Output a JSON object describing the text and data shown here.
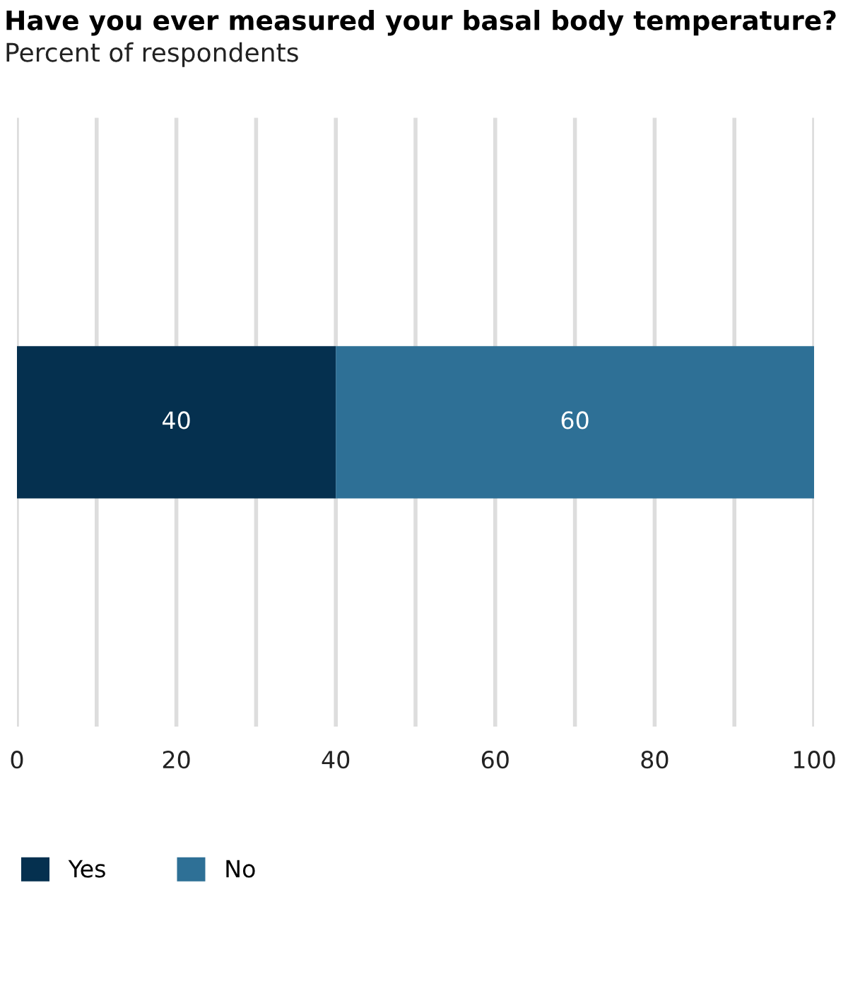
{
  "chart_data": {
    "type": "bar",
    "orientation": "horizontal",
    "stacked": true,
    "title": "Have you ever measured your basal body temperature?",
    "subtitle": "Percent of respondents",
    "categories": [
      null
    ],
    "series": [
      {
        "name": "Yes",
        "color": "#05304f",
        "values": [
          40
        ]
      },
      {
        "name": "No",
        "color": "#2e7096",
        "values": [
          60
        ]
      }
    ],
    "xlim": [
      0,
      100
    ],
    "xticks": [
      0,
      {
        "value": 10,
        "label": null
      },
      20,
      {
        "value": 30,
        "label": null
      },
      40,
      {
        "value": 50,
        "label": null
      },
      60,
      {
        "value": 70,
        "label": null
      },
      80,
      {
        "value": 90,
        "label": null
      },
      100
    ],
    "grid": "x",
    "legend": "bottom left",
    "data_labels": true,
    "tick_labels": "x"
  }
}
